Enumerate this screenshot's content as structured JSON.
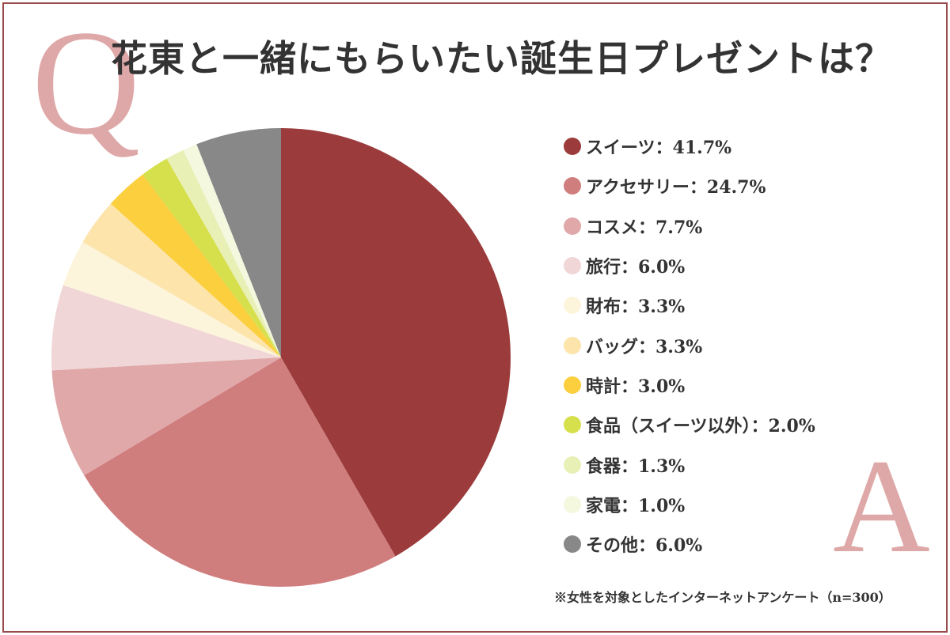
{
  "decor": {
    "q_letter": "Q",
    "a_letter": "A"
  },
  "chart_data": {
    "type": "pie",
    "title": "花東と一緒にもらいたい誕生日プレゼントは？",
    "start": "top",
    "direction": "clockwise",
    "legend_position": "right",
    "slices": [
      {
        "label": "スイーツ",
        "value": 41.7,
        "display": "スイーツ：41.7%",
        "color": "#9b3b3c"
      },
      {
        "label": "アクセサリー",
        "value": 24.7,
        "display": "アクセサリー：24.7%",
        "color": "#d07d7e"
      },
      {
        "label": "コスメ",
        "value": 7.7,
        "display": "コスメ：7.7%",
        "color": "#e0a8a8"
      },
      {
        "label": "旅行",
        "value": 6.0,
        "display": "旅行：6.0%",
        "color": "#f0d6d6"
      },
      {
        "label": "財布",
        "value": 3.3,
        "display": "財布：3.3%",
        "color": "#fdf4dc"
      },
      {
        "label": "バッグ",
        "value": 3.3,
        "display": "バッグ：3.3%",
        "color": "#fce4ab"
      },
      {
        "label": "時計",
        "value": 3.0,
        "display": "時計：3.0%",
        "color": "#fbcf3e"
      },
      {
        "label": "食品（スイーツ以外）",
        "value": 2.0,
        "display": "食品（スイーツ以外）：2.0%",
        "color": "#d6e04c"
      },
      {
        "label": "食器",
        "value": 1.3,
        "display": "食器：1.3%",
        "color": "#e8f0b6"
      },
      {
        "label": "家電",
        "value": 1.0,
        "display": "家電：1.0%",
        "color": "#f3f8df"
      },
      {
        "label": "その他",
        "value": 6.0,
        "display": "その他：6.0%",
        "color": "#888888"
      }
    ],
    "note": "※女性を対象としたインターネットアンケート（n=300）"
  }
}
